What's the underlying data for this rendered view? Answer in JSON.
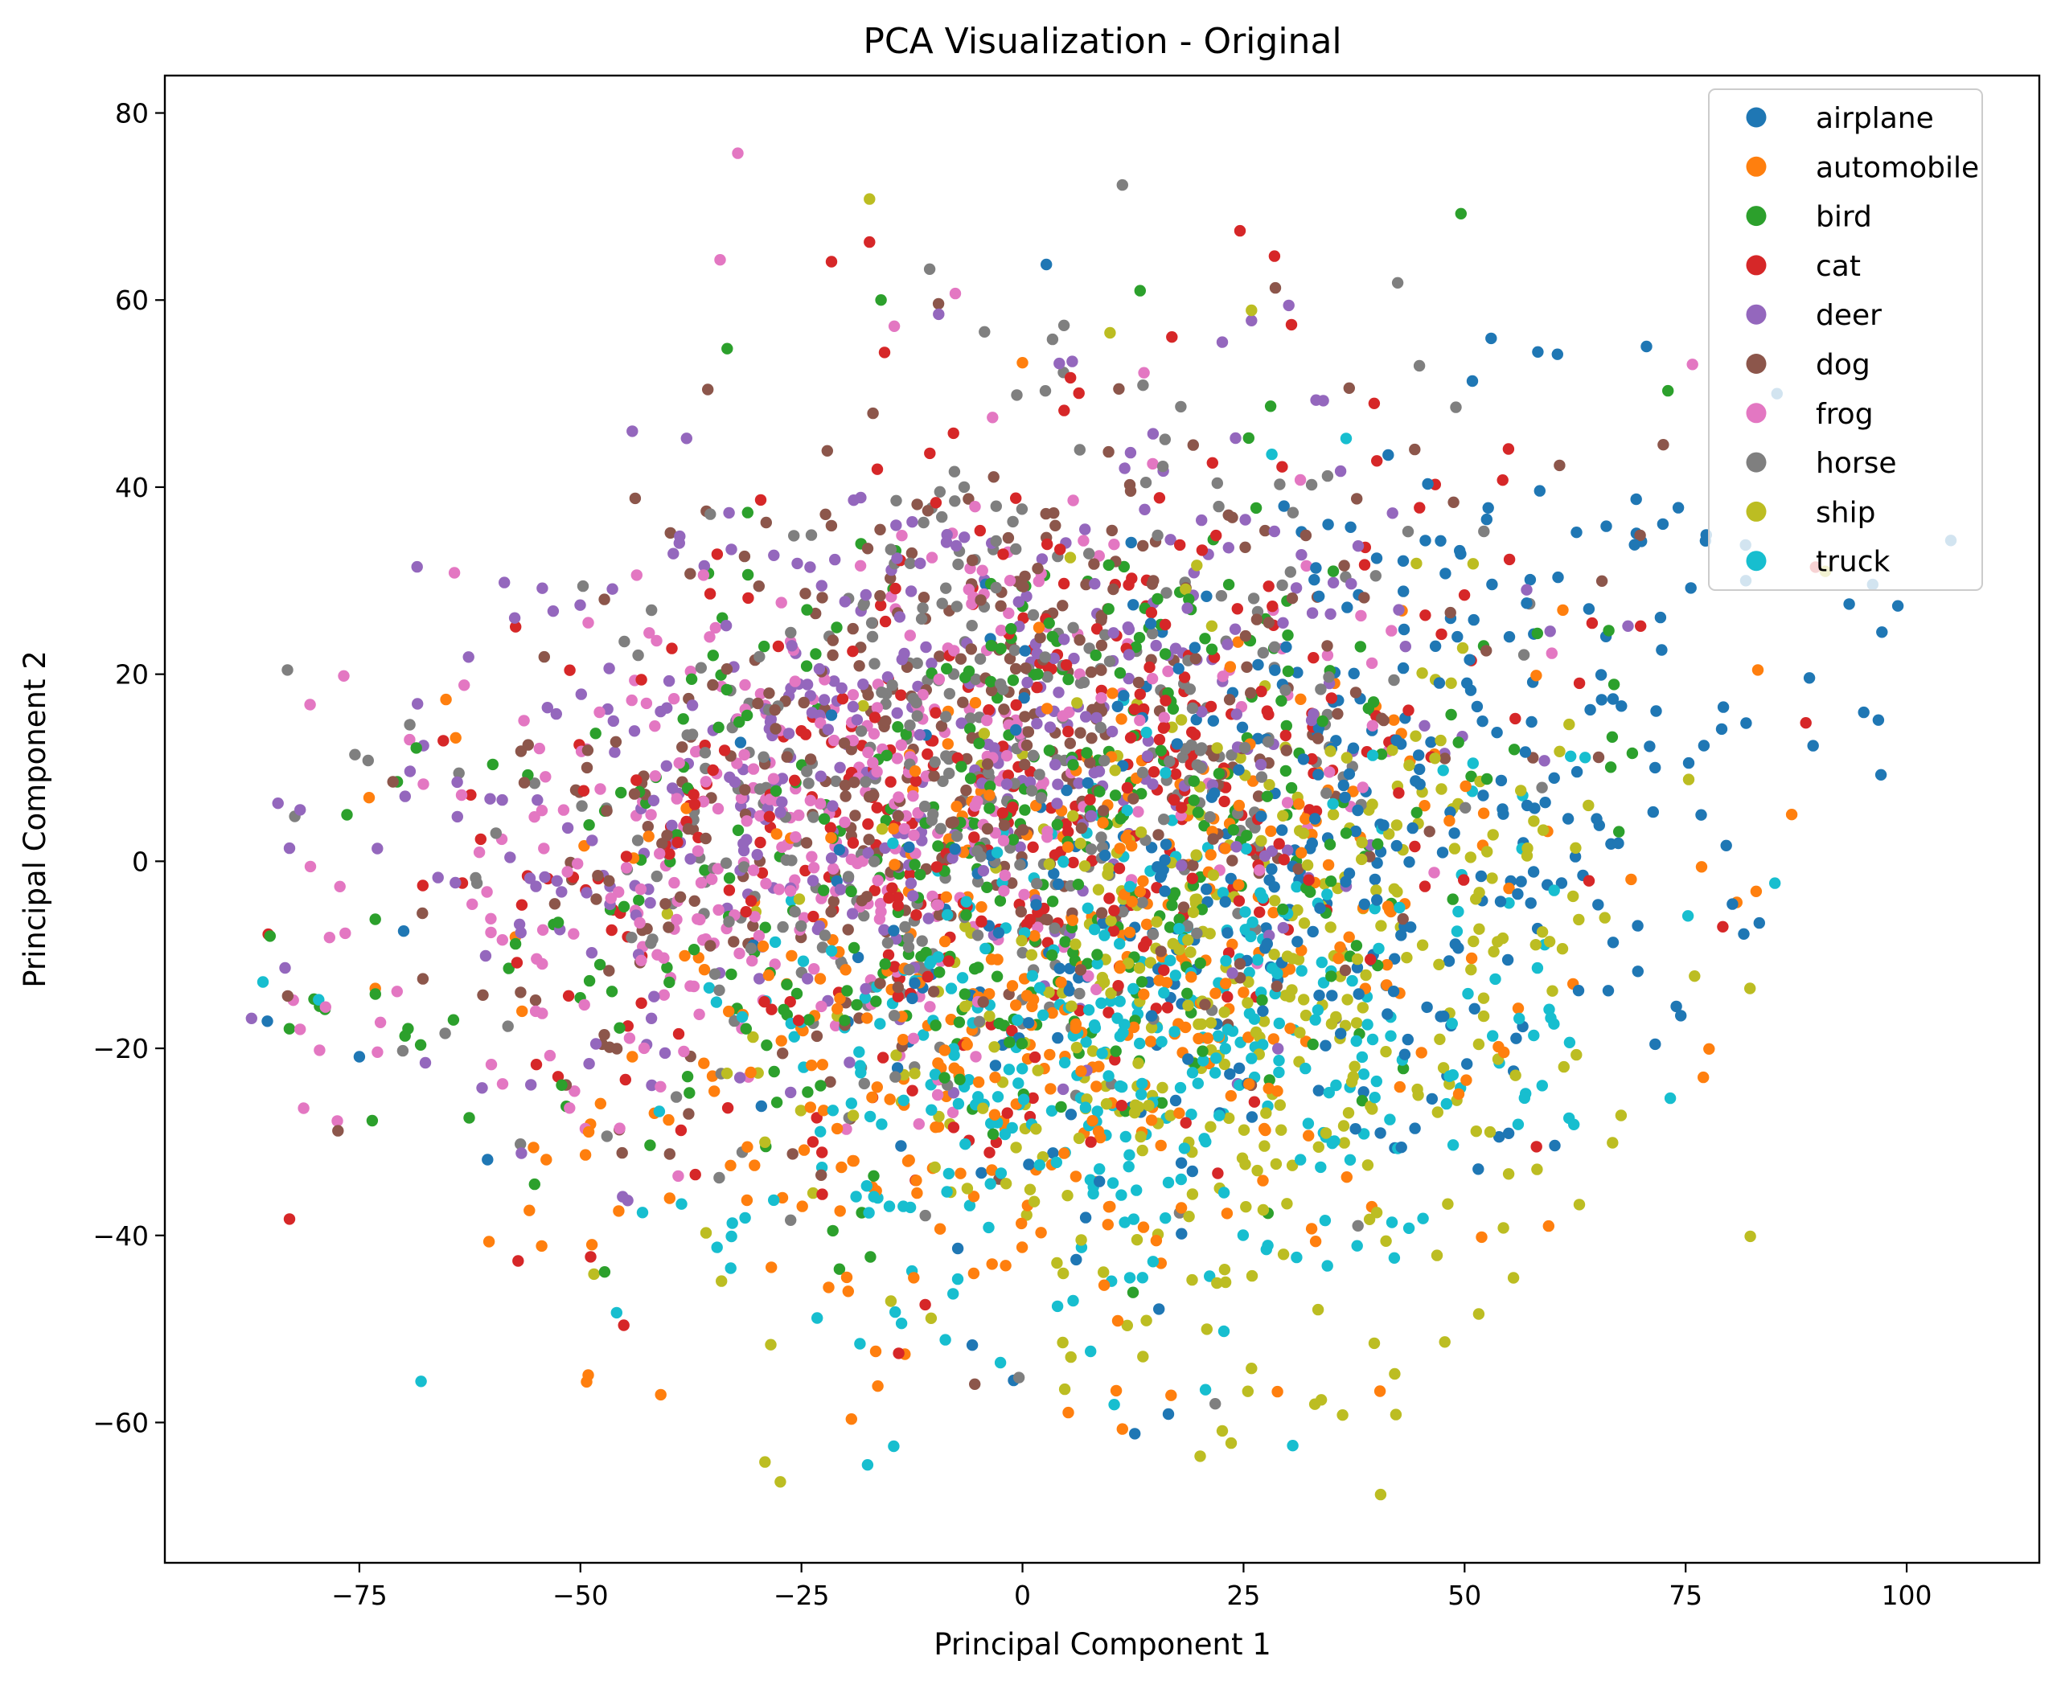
{
  "chart_data": {
    "type": "scatter",
    "title": "PCA Visualization - Original",
    "xlabel": "Principal Component 1",
    "ylabel": "Principal Component 2",
    "xlim": [
      -97,
      115
    ],
    "ylim": [
      -75,
      84
    ],
    "xticks": [
      -75,
      -50,
      -25,
      0,
      25,
      50,
      75,
      100
    ],
    "yticks": [
      -60,
      -40,
      -20,
      0,
      20,
      40,
      60,
      80
    ],
    "xtick_labels": [
      "−75",
      "−50",
      "−25",
      "0",
      "25",
      "50",
      "75",
      "100"
    ],
    "ytick_labels": [
      "−60",
      "−40",
      "−20",
      "0",
      "20",
      "40",
      "60",
      "80"
    ],
    "grid": false,
    "legend_position": "top-right",
    "series": [
      {
        "name": "airplane",
        "color": "#1f77b4",
        "center": [
          35,
          2
        ],
        "spread": [
          26,
          20
        ],
        "points": [
          [
            2.7,
            63.8
          ],
          [
            53,
            55.9
          ],
          [
            60.5,
            54.2
          ],
          [
            47.3,
            -16.6
          ],
          [
            105,
            34.3
          ],
          [
            99,
            27.3
          ],
          [
            96.8,
            15.1
          ],
          [
            89,
            19.6
          ],
          [
            -85.4,
            -17.1
          ],
          [
            -75,
            -20.9
          ],
          [
            -60.5,
            -31.9
          ],
          [
            -1,
            -55.5
          ],
          [
            12.7,
            -61.2
          ],
          [
            16.5,
            -59.1
          ],
          [
            97.2,
            24.5
          ],
          [
            93.5,
            27.5
          ],
          [
            81.8,
            30
          ],
          [
            70,
            34.2
          ],
          [
            58.5,
            39.6
          ]
        ]
      },
      {
        "name": "automobile",
        "color": "#ff7f0e",
        "center": [
          5,
          -15
        ],
        "spread": [
          26,
          16
        ],
        "points": [
          [
            0,
            53.3
          ],
          [
            -73.2,
            -13.6
          ],
          [
            -73.9,
            6.8
          ],
          [
            -55.3,
            -30.6
          ],
          [
            10.6,
            -56.6
          ],
          [
            11.3,
            -60.7
          ],
          [
            16.8,
            -57.1
          ],
          [
            77,
            -23.1
          ],
          [
            87,
            5
          ],
          [
            76.8,
            -0.6
          ],
          [
            59.5,
            -39
          ],
          [
            -16.6,
            -52.4
          ],
          [
            -13.3,
            -52.7
          ],
          [
            -65.2,
            17.3
          ],
          [
            -64.1,
            13.2
          ]
        ]
      },
      {
        "name": "bird",
        "color": "#2ca02c",
        "center": [
          0,
          2
        ],
        "spread": [
          30,
          17
        ],
        "points": [
          [
            -33.4,
            54.8
          ],
          [
            13.3,
            61
          ],
          [
            -16,
            60
          ],
          [
            73,
            50.3
          ],
          [
            -73.2,
            -6.2
          ],
          [
            -85.1,
            -8
          ],
          [
            -79.5,
            -15.5
          ],
          [
            -69.5,
            -17.9
          ],
          [
            -51.6,
            -26.2
          ],
          [
            -17.2,
            -42.3
          ],
          [
            12.5,
            -46.1
          ]
        ]
      },
      {
        "name": "cat",
        "color": "#d62728",
        "center": [
          0,
          8
        ],
        "spread": [
          28,
          17
        ],
        "points": [
          [
            24.6,
            67.4
          ],
          [
            28.5,
            64.7
          ],
          [
            -21.6,
            64.1
          ],
          [
            -17.3,
            66.2
          ],
          [
            -15.6,
            54.4
          ],
          [
            -85.3,
            -7.8
          ],
          [
            -45.1,
            -49.6
          ],
          [
            -11,
            -47.4
          ],
          [
            -14,
            -52.6
          ],
          [
            88.6,
            14.8
          ],
          [
            79.2,
            -7
          ],
          [
            -37,
            -33.5
          ]
        ]
      },
      {
        "name": "deer",
        "color": "#9467bd",
        "center": [
          -12,
          12
        ],
        "spread": [
          28,
          16
        ],
        "points": [
          [
            -87.2,
            -16.8
          ],
          [
            -84.2,
            6.2
          ],
          [
            -81.7,
            5.5
          ],
          [
            -82.9,
            1.4
          ],
          [
            -83.4,
            -11.4
          ],
          [
            -58.6,
            29.8
          ],
          [
            -55.6,
            -23.9
          ],
          [
            22.6,
            55.5
          ],
          [
            25.9,
            57.8
          ],
          [
            33.2,
            49.3
          ]
        ]
      },
      {
        "name": "dog",
        "color": "#8c564b",
        "center": [
          -5,
          12
        ],
        "spread": [
          27,
          16
        ],
        "points": [
          [
            -71.2,
            8.5
          ],
          [
            -83.1,
            -14.4
          ],
          [
            -43.8,
            38.8
          ],
          [
            -45.6,
            -28.7
          ],
          [
            -39.9,
            -31.3
          ],
          [
            -5.4,
            -55.9
          ],
          [
            10.9,
            50.5
          ],
          [
            28.6,
            61.3
          ],
          [
            -9.5,
            59.6
          ]
        ]
      },
      {
        "name": "frog",
        "color": "#e377c2",
        "center": [
          -22,
          5
        ],
        "spread": [
          27,
          14
        ],
        "points": [
          [
            -32.2,
            75.7
          ],
          [
            -34.2,
            64.3
          ],
          [
            -81.3,
            -26.4
          ],
          [
            -79.5,
            -20.2
          ],
          [
            -76.6,
            -7.7
          ],
          [
            -77.2,
            -2.7
          ],
          [
            -14.5,
            57.2
          ],
          [
            -7.6,
            60.7
          ]
        ]
      },
      {
        "name": "horse",
        "color": "#7f7f7f",
        "center": [
          -5,
          8
        ],
        "spread": [
          26,
          16
        ],
        "points": [
          [
            11.3,
            72.3
          ],
          [
            -10.5,
            63.3
          ],
          [
            -4.3,
            56.6
          ],
          [
            3.4,
            55.8
          ],
          [
            -69.3,
            14.6
          ],
          [
            -75.5,
            11.4
          ],
          [
            -82.3,
            4.8
          ],
          [
            -47,
            -29.4
          ],
          [
            21.8,
            -58
          ],
          [
            -0.4,
            -55.2
          ]
        ]
      },
      {
        "name": "ship",
        "color": "#bcbd22",
        "center": [
          25,
          -15
        ],
        "spread": [
          22,
          17
        ],
        "points": [
          [
            -17.3,
            70.8
          ],
          [
            9.9,
            56.5
          ],
          [
            25.9,
            58.9
          ],
          [
            40.5,
            -67.7
          ],
          [
            20.1,
            -63.6
          ],
          [
            22.6,
            -60.9
          ],
          [
            23.6,
            -62.2
          ],
          [
            36.2,
            -59.2
          ],
          [
            42.1,
            -54.8
          ],
          [
            51.6,
            -48.4
          ],
          [
            90.8,
            31
          ]
        ]
      },
      {
        "name": "truck",
        "color": "#17becf",
        "center": [
          15,
          -20
        ],
        "spread": [
          23,
          14
        ],
        "points": [
          [
            -85.9,
            -12.9
          ],
          [
            -79.6,
            -14.8
          ],
          [
            -33,
            -43.5
          ],
          [
            -2.5,
            -53.6
          ],
          [
            7.7,
            -52.4
          ],
          [
            20.7,
            -56.5
          ],
          [
            36.6,
            45.2
          ],
          [
            28.2,
            43.5
          ]
        ]
      }
    ]
  }
}
